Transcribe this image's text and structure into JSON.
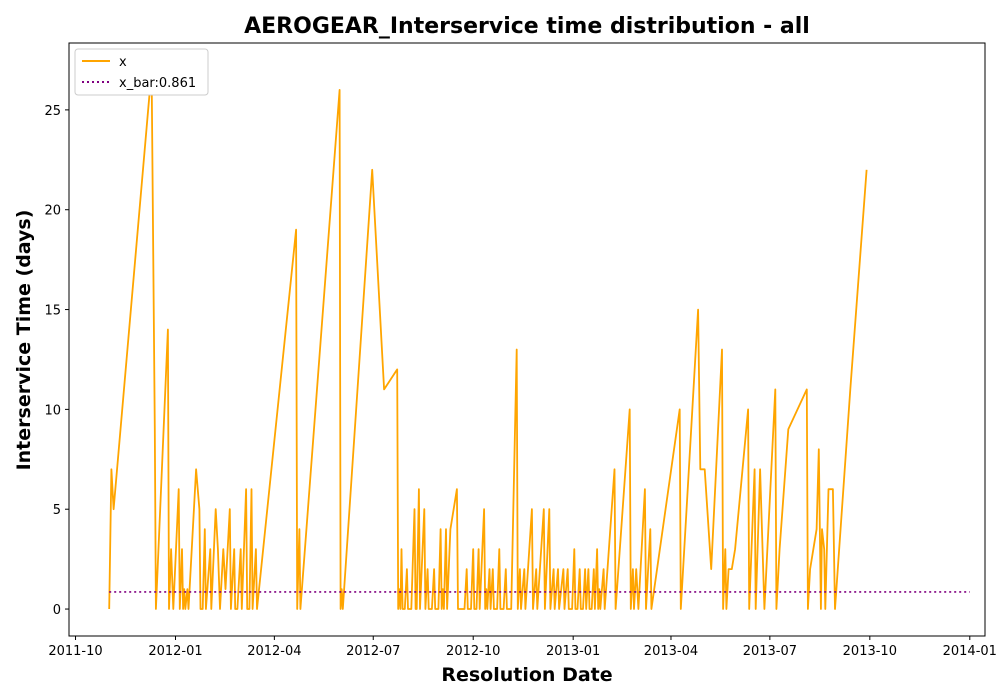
{
  "chart_data": {
    "type": "line",
    "title": "AEROGEAR_Interservice time distribution - all",
    "xlabel": "Resolution Date",
    "ylabel": "Interservice Time (days)",
    "x_range": [
      "2011-09-25",
      "2014-01-15"
    ],
    "ylim": [
      -1.35,
      28.35
    ],
    "x_ticks": [
      "2011-10-01",
      "2012-01-01",
      "2012-04-01",
      "2012-07-01",
      "2012-10-01",
      "2013-01-01",
      "2013-04-01",
      "2013-07-01",
      "2013-10-01",
      "2014-01-01"
    ],
    "x_tick_labels": [
      "2011-10",
      "2012-01",
      "2012-04",
      "2012-07",
      "2012-10",
      "2013-01",
      "2013-04",
      "2013-07",
      "2013-10",
      "2014-01"
    ],
    "y_ticks": [
      0,
      5,
      10,
      15,
      20,
      25
    ],
    "y_tick_labels": [
      "0",
      "5",
      "10",
      "15",
      "20",
      "25"
    ],
    "grid": false,
    "legend_position": "top-left",
    "series": [
      {
        "name": "x",
        "style": "solid",
        "color": "#FFA500",
        "points": [
          [
            "2011-11-01",
            0
          ],
          [
            "2011-11-03",
            7
          ],
          [
            "2011-11-05",
            5
          ],
          [
            "2011-12-10",
            27
          ],
          [
            "2011-12-13",
            9
          ],
          [
            "2011-12-14",
            0
          ],
          [
            "2011-12-25",
            14
          ],
          [
            "2011-12-26",
            0
          ],
          [
            "2011-12-28",
            3
          ],
          [
            "2011-12-30",
            0
          ],
          [
            "2012-01-04",
            6
          ],
          [
            "2012-01-05",
            0
          ],
          [
            "2012-01-07",
            3
          ],
          [
            "2012-01-08",
            0
          ],
          [
            "2012-01-09",
            1
          ],
          [
            "2012-01-10",
            0
          ],
          [
            "2012-01-12",
            1
          ],
          [
            "2012-01-13",
            0
          ],
          [
            "2012-01-20",
            7
          ],
          [
            "2012-01-23",
            5
          ],
          [
            "2012-01-24",
            0
          ],
          [
            "2012-01-26",
            0
          ],
          [
            "2012-01-28",
            4
          ],
          [
            "2012-01-29",
            0
          ],
          [
            "2012-02-02",
            3
          ],
          [
            "2012-02-03",
            0
          ],
          [
            "2012-02-07",
            5
          ],
          [
            "2012-02-09",
            3
          ],
          [
            "2012-02-11",
            0
          ],
          [
            "2012-02-14",
            3
          ],
          [
            "2012-02-16",
            1
          ],
          [
            "2012-02-20",
            5
          ],
          [
            "2012-02-21",
            0
          ],
          [
            "2012-02-24",
            3
          ],
          [
            "2012-02-25",
            0
          ],
          [
            "2012-02-27",
            0
          ],
          [
            "2012-03-01",
            3
          ],
          [
            "2012-03-02",
            0
          ],
          [
            "2012-03-06",
            6
          ],
          [
            "2012-03-07",
            0
          ],
          [
            "2012-03-09",
            0
          ],
          [
            "2012-03-11",
            6
          ],
          [
            "2012-03-12",
            0
          ],
          [
            "2012-03-15",
            3
          ],
          [
            "2012-03-16",
            0
          ],
          [
            "2012-04-21",
            19
          ],
          [
            "2012-04-22",
            0
          ],
          [
            "2012-04-24",
            4
          ],
          [
            "2012-04-25",
            0
          ],
          [
            "2012-05-31",
            26
          ],
          [
            "2012-06-01",
            0
          ],
          [
            "2012-06-02",
            1
          ],
          [
            "2012-06-03",
            0
          ],
          [
            "2012-06-30",
            22
          ],
          [
            "2012-07-11",
            11
          ],
          [
            "2012-07-23",
            12
          ],
          [
            "2012-07-24",
            0
          ],
          [
            "2012-07-25",
            1
          ],
          [
            "2012-07-26",
            0
          ],
          [
            "2012-07-27",
            3
          ],
          [
            "2012-07-28",
            0
          ],
          [
            "2012-07-30",
            0
          ],
          [
            "2012-08-01",
            2
          ],
          [
            "2012-08-02",
            0
          ],
          [
            "2012-08-05",
            0
          ],
          [
            "2012-08-08",
            5
          ],
          [
            "2012-08-09",
            0
          ],
          [
            "2012-08-10",
            0
          ],
          [
            "2012-08-12",
            6
          ],
          [
            "2012-08-13",
            0
          ],
          [
            "2012-08-17",
            5
          ],
          [
            "2012-08-18",
            0
          ],
          [
            "2012-08-20",
            2
          ],
          [
            "2012-08-21",
            0
          ],
          [
            "2012-08-24",
            0
          ],
          [
            "2012-08-26",
            2
          ],
          [
            "2012-08-27",
            0
          ],
          [
            "2012-08-30",
            0
          ],
          [
            "2012-09-01",
            4
          ],
          [
            "2012-09-02",
            0
          ],
          [
            "2012-09-03",
            1
          ],
          [
            "2012-09-04",
            0
          ],
          [
            "2012-09-06",
            4
          ],
          [
            "2012-09-07",
            0
          ],
          [
            "2012-09-10",
            4
          ],
          [
            "2012-09-16",
            6
          ],
          [
            "2012-09-17",
            0
          ],
          [
            "2012-09-23",
            0
          ],
          [
            "2012-09-25",
            2
          ],
          [
            "2012-09-26",
            0
          ],
          [
            "2012-09-29",
            0
          ],
          [
            "2012-10-01",
            3
          ],
          [
            "2012-10-02",
            0
          ],
          [
            "2012-10-04",
            0
          ],
          [
            "2012-10-06",
            3
          ],
          [
            "2012-10-07",
            0
          ],
          [
            "2012-10-11",
            5
          ],
          [
            "2012-10-12",
            0
          ],
          [
            "2012-10-13",
            1
          ],
          [
            "2012-10-14",
            0
          ],
          [
            "2012-10-16",
            2
          ],
          [
            "2012-10-17",
            0
          ],
          [
            "2012-10-19",
            2
          ],
          [
            "2012-10-20",
            0
          ],
          [
            "2012-10-23",
            0
          ],
          [
            "2012-10-25",
            3
          ],
          [
            "2012-10-26",
            0
          ],
          [
            "2012-10-29",
            0
          ],
          [
            "2012-10-31",
            2
          ],
          [
            "2012-11-01",
            0
          ],
          [
            "2012-11-03",
            0
          ],
          [
            "2012-11-05",
            0
          ],
          [
            "2012-11-10",
            13
          ],
          [
            "2012-11-11",
            0
          ],
          [
            "2012-11-13",
            2
          ],
          [
            "2012-11-14",
            0
          ],
          [
            "2012-11-17",
            2
          ],
          [
            "2012-11-18",
            0
          ],
          [
            "2012-11-24",
            5
          ],
          [
            "2012-11-25",
            0
          ],
          [
            "2012-11-28",
            2
          ],
          [
            "2012-11-29",
            0
          ],
          [
            "2012-12-05",
            5
          ],
          [
            "2012-12-06",
            0
          ],
          [
            "2012-12-10",
            5
          ],
          [
            "2012-12-11",
            0
          ],
          [
            "2012-12-14",
            2
          ],
          [
            "2012-12-15",
            0
          ],
          [
            "2012-12-18",
            2
          ],
          [
            "2012-12-19",
            0
          ],
          [
            "2012-12-23",
            2
          ],
          [
            "2012-12-24",
            0
          ],
          [
            "2012-12-27",
            2
          ],
          [
            "2012-12-28",
            0
          ],
          [
            "2012-12-31",
            0
          ],
          [
            "2013-01-02",
            3
          ],
          [
            "2013-01-03",
            0
          ],
          [
            "2013-01-05",
            0
          ],
          [
            "2013-01-07",
            2
          ],
          [
            "2013-01-08",
            0
          ],
          [
            "2013-01-10",
            0
          ],
          [
            "2013-01-12",
            2
          ],
          [
            "2013-01-13",
            0
          ],
          [
            "2013-01-15",
            2
          ],
          [
            "2013-01-16",
            0
          ],
          [
            "2013-01-18",
            0
          ],
          [
            "2013-01-20",
            2
          ],
          [
            "2013-01-21",
            0
          ],
          [
            "2013-01-23",
            3
          ],
          [
            "2013-01-24",
            0
          ],
          [
            "2013-01-25",
            1
          ],
          [
            "2013-01-26",
            0
          ],
          [
            "2013-01-29",
            2
          ],
          [
            "2013-01-30",
            0
          ],
          [
            "2013-02-08",
            7
          ],
          [
            "2013-02-09",
            0
          ],
          [
            "2013-02-22",
            10
          ],
          [
            "2013-02-23",
            0
          ],
          [
            "2013-02-25",
            2
          ],
          [
            "2013-02-26",
            0
          ],
          [
            "2013-02-28",
            2
          ],
          [
            "2013-03-02",
            0
          ],
          [
            "2013-03-08",
            6
          ],
          [
            "2013-03-09",
            0
          ],
          [
            "2013-03-13",
            4
          ],
          [
            "2013-03-14",
            0
          ],
          [
            "2013-04-09",
            10
          ],
          [
            "2013-04-10",
            0
          ],
          [
            "2013-04-26",
            15
          ],
          [
            "2013-04-28",
            7
          ],
          [
            "2013-05-01",
            7
          ],
          [
            "2013-05-02",
            7
          ],
          [
            "2013-05-08",
            2
          ],
          [
            "2013-05-18",
            13
          ],
          [
            "2013-05-19",
            0
          ],
          [
            "2013-05-21",
            3
          ],
          [
            "2013-05-22",
            0
          ],
          [
            "2013-05-24",
            2
          ],
          [
            "2013-05-27",
            2
          ],
          [
            "2013-05-30",
            3
          ],
          [
            "2013-06-11",
            10
          ],
          [
            "2013-06-12",
            0
          ],
          [
            "2013-06-17",
            7
          ],
          [
            "2013-06-18",
            0
          ],
          [
            "2013-06-22",
            7
          ],
          [
            "2013-06-26",
            0
          ],
          [
            "2013-07-06",
            11
          ],
          [
            "2013-07-07",
            0
          ],
          [
            "2013-07-10",
            3
          ],
          [
            "2013-07-18",
            9
          ],
          [
            "2013-08-04",
            11
          ],
          [
            "2013-08-05",
            0
          ],
          [
            "2013-08-07",
            2
          ],
          [
            "2013-08-13",
            4
          ],
          [
            "2013-08-15",
            8
          ],
          [
            "2013-08-17",
            0
          ],
          [
            "2013-08-18",
            4
          ],
          [
            "2013-08-20",
            3
          ],
          [
            "2013-08-21",
            0
          ],
          [
            "2013-08-24",
            6
          ],
          [
            "2013-08-28",
            6
          ],
          [
            "2013-08-30",
            0
          ],
          [
            "2013-09-13",
            11
          ],
          [
            "2013-09-28",
            22
          ]
        ]
      },
      {
        "name": "x_bar:0.861",
        "style": "dotted",
        "color": "#800080",
        "points": [
          [
            "2011-11-01",
            0.861
          ],
          [
            "2014-01-01",
            0.861
          ]
        ]
      }
    ]
  }
}
